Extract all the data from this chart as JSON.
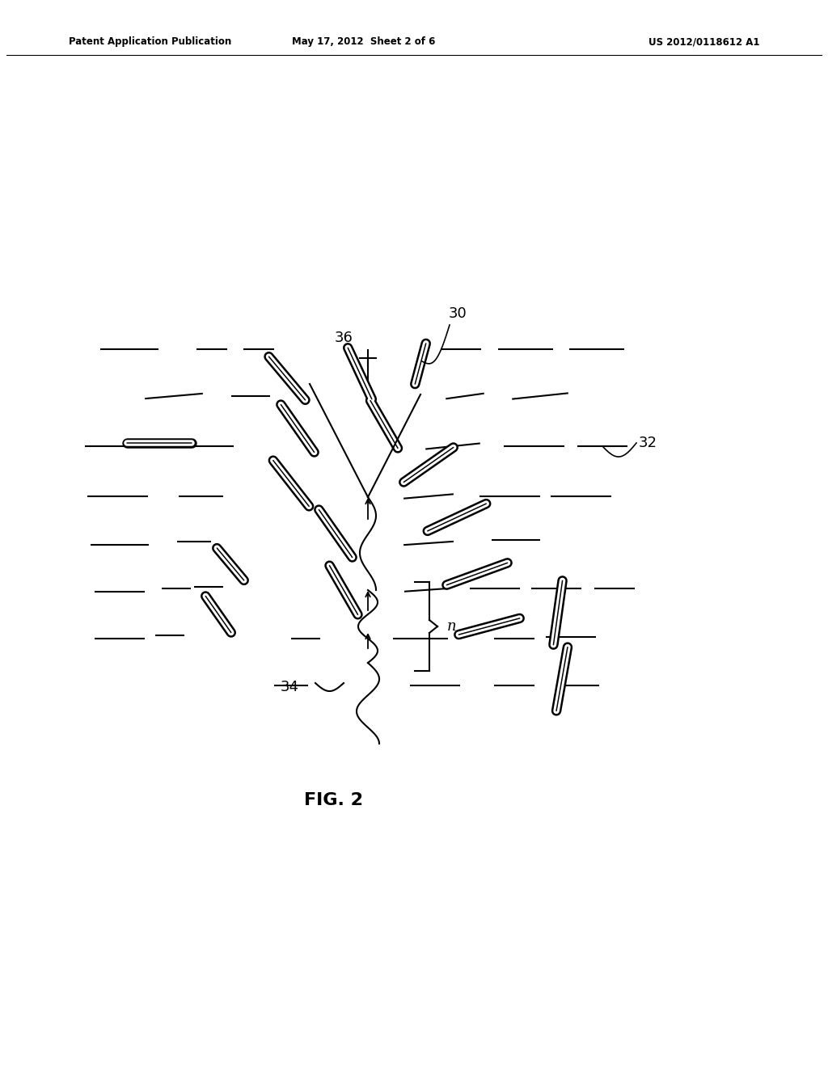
{
  "bg_color": "#ffffff",
  "header_left": "Patent Application Publication",
  "header_mid": "May 17, 2012  Sheet 2 of 6",
  "header_right": "US 2012/0118612 A1",
  "fig_label": "FIG. 2",
  "label_30": "30",
  "label_32": "32",
  "label_34": "34",
  "label_36": "36",
  "label_n": "n"
}
